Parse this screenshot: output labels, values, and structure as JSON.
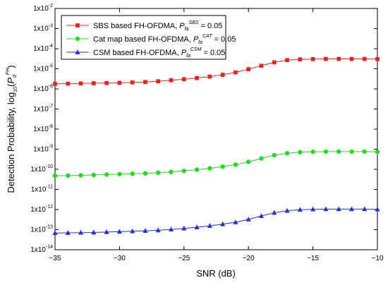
{
  "chart_data": {
    "type": "line",
    "xlabel": "SNR (dB)",
    "ylabel": {
      "prefix": "Detection Probability, log",
      "sub": "10",
      "open": "(",
      "italic": "P",
      "italic_sub": "d",
      "sup": "FH",
      "close": ")"
    },
    "xlim": [
      -35,
      -10
    ],
    "ylim_exponent": [
      -14,
      -2
    ],
    "y_scale": "log10",
    "grid": false,
    "legend_placement": "top-left",
    "x_ticks": [
      "−35",
      "−30",
      "−25",
      "−20",
      "−15",
      "−10"
    ],
    "y_tick_exponents": [
      "-14",
      "-13",
      "-12",
      "-11",
      "-10",
      "-9",
      "-8",
      "-7",
      "-6",
      "-5",
      "-4",
      "-3",
      "-2"
    ],
    "y_tick_base": "1x10",
    "x": [
      -35,
      -34,
      -33,
      -32,
      -31,
      -30,
      -29,
      -28,
      -27,
      -26,
      -25,
      -24,
      -23,
      -22,
      -21,
      -20,
      -19,
      -18,
      -17,
      -16,
      -15,
      -14,
      -13,
      -12,
      -11,
      -10
    ],
    "series": [
      {
        "name": {
          "prefix": "SBS based FH-OFDMA, ",
          "italic": "P",
          "sub": "fa",
          "sup": "SBS",
          "suffix": " = 0.05"
        },
        "color": "#e8241c",
        "marker": "square",
        "values": [
          -5.75,
          -5.74,
          -5.73,
          -5.72,
          -5.71,
          -5.7,
          -5.68,
          -5.66,
          -5.62,
          -5.57,
          -5.52,
          -5.46,
          -5.39,
          -5.3,
          -5.18,
          -5.02,
          -4.85,
          -4.68,
          -4.57,
          -4.53,
          -4.52,
          -4.51,
          -4.51,
          -4.51,
          -4.51,
          -4.52
        ]
      },
      {
        "name": {
          "prefix": "Cat map based FH-OFDMA, ",
          "italic": "P",
          "sub": "fa",
          "sup": "CAT",
          "suffix": " = 0.05"
        },
        "color": "#22dc22",
        "marker": "circle",
        "values": [
          -10.32,
          -10.31,
          -10.3,
          -10.28,
          -10.26,
          -10.24,
          -10.22,
          -10.2,
          -10.17,
          -10.13,
          -10.08,
          -10.02,
          -9.95,
          -9.87,
          -9.77,
          -9.63,
          -9.46,
          -9.3,
          -9.2,
          -9.15,
          -9.13,
          -9.12,
          -9.12,
          -9.12,
          -9.12,
          -9.13
        ]
      },
      {
        "name": {
          "prefix": "CSM based FH-OFDMA, ",
          "italic": "P",
          "sub": "fa",
          "sup": "CSM",
          "suffix": " = 0.05"
        },
        "color": "#2230e8",
        "marker": "triangle",
        "values": [
          -13.17,
          -13.16,
          -13.15,
          -13.14,
          -13.12,
          -13.1,
          -13.08,
          -13.06,
          -13.03,
          -12.99,
          -12.94,
          -12.88,
          -12.81,
          -12.73,
          -12.63,
          -12.49,
          -12.32,
          -12.16,
          -12.06,
          -12.01,
          -11.99,
          -11.98,
          -11.98,
          -11.98,
          -11.98,
          -11.99
        ]
      }
    ]
  }
}
